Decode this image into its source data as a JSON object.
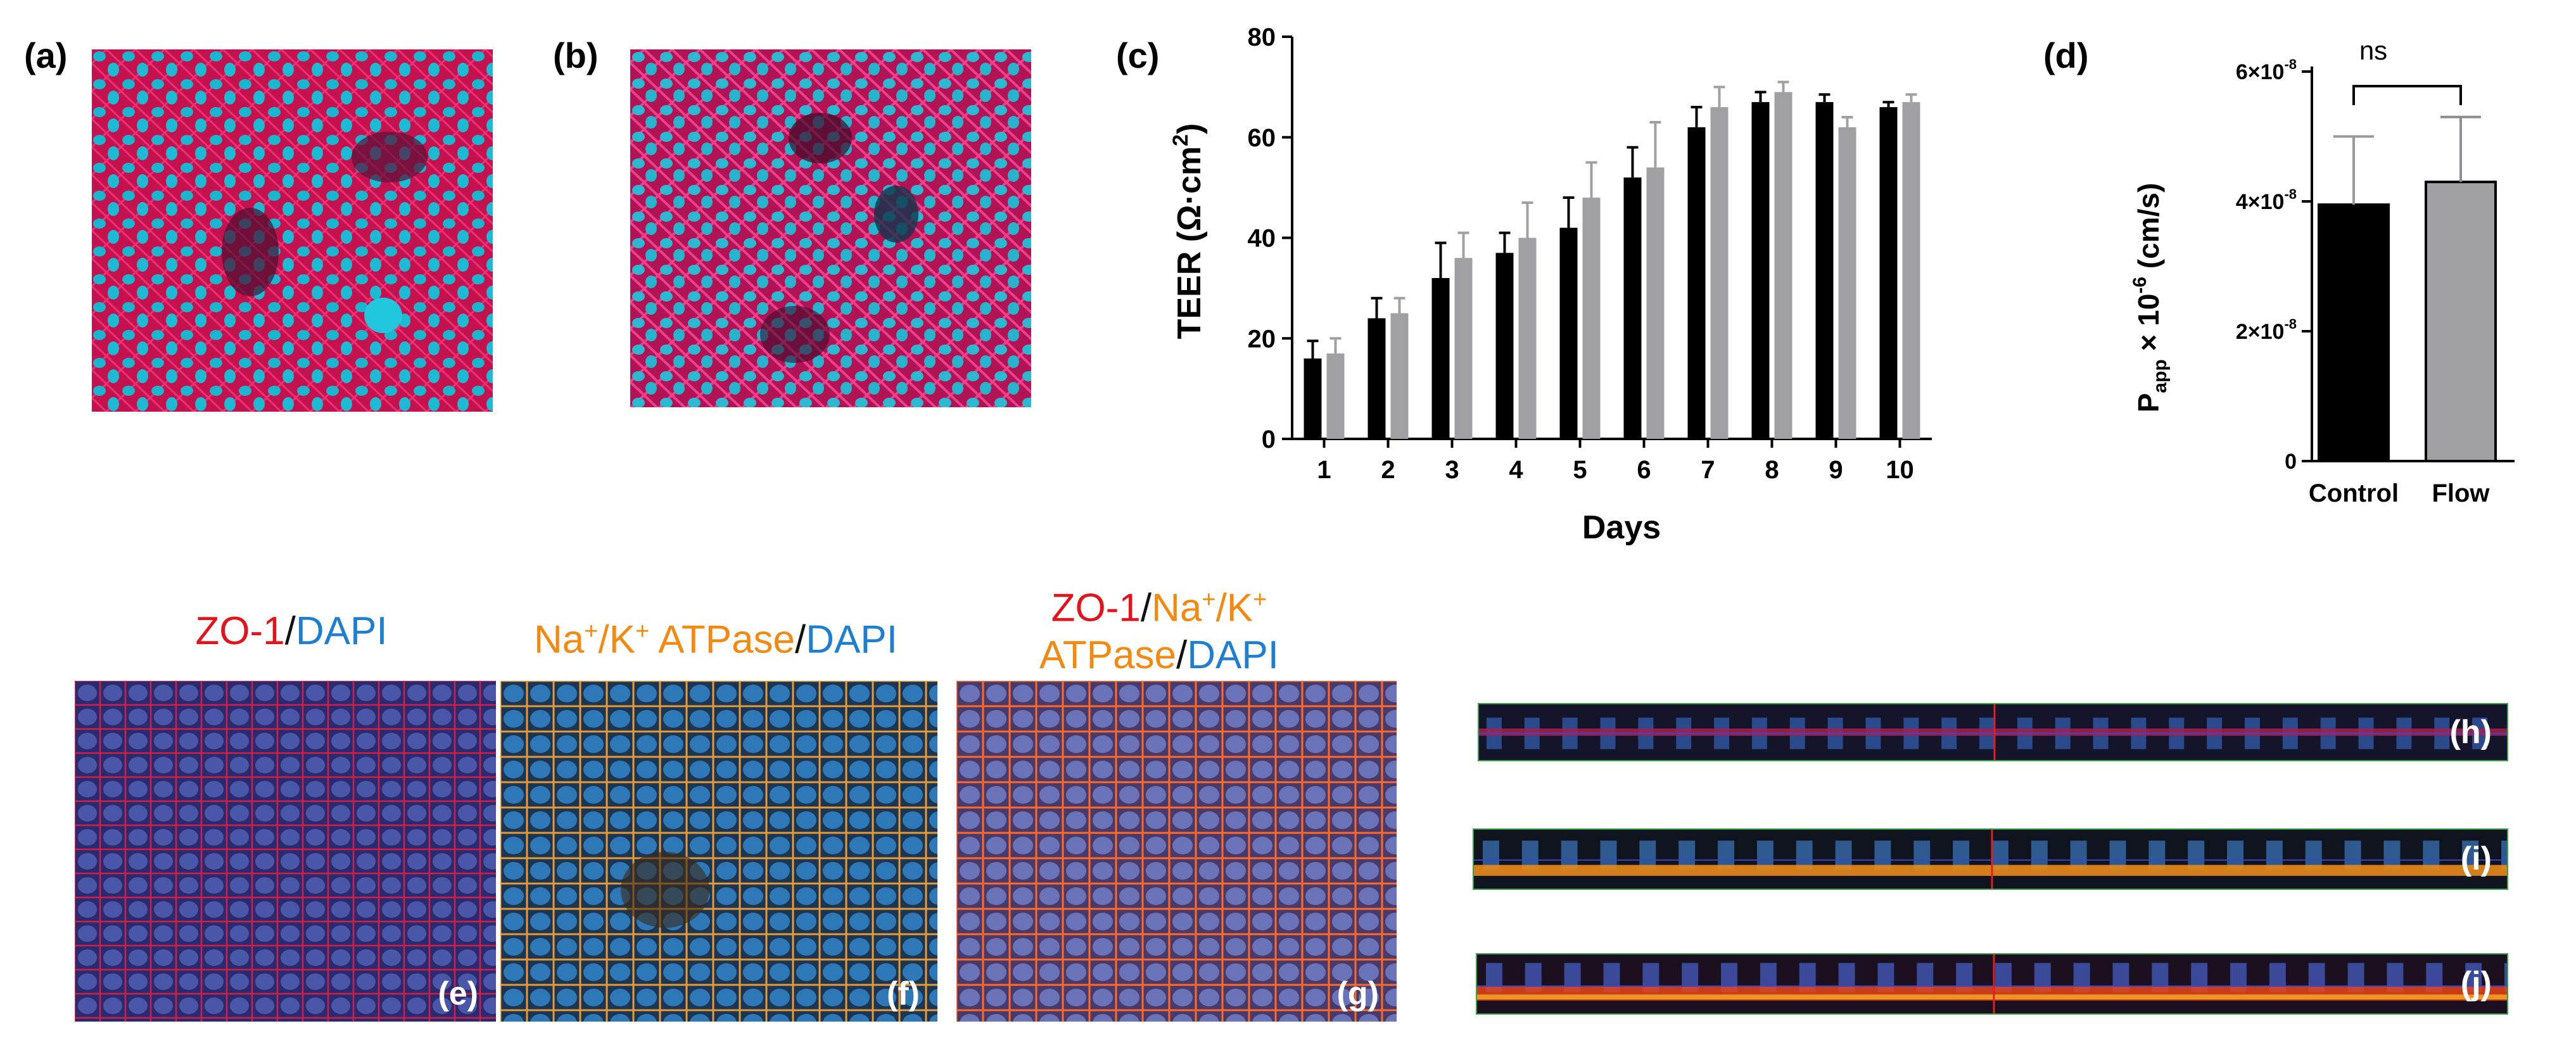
{
  "panels": {
    "a": "(a)",
    "b": "(b)",
    "c": "(c)",
    "d": "(d)",
    "e": "(e)",
    "f": "(f)",
    "g": "(g)",
    "h": "(h)",
    "i": "(i)",
    "j": "(j)"
  },
  "stain_labels": {
    "e": {
      "zo1": "ZO-1",
      "slash": "/",
      "dapi": "DAPI"
    },
    "f": {
      "na": "Na",
      "na_sup": "+",
      "k": "/K",
      "k_sup": "+",
      "atpase": " ATPase",
      "slash": "/",
      "dapi": "DAPI"
    },
    "g": {
      "zo1": "ZO-1",
      "slash1": "/",
      "na": "Na",
      "na_sup": "+",
      "k": "/K",
      "k_sup": "+",
      "atpase": "ATPase",
      "slash2": "/",
      "dapi": "DAPI"
    }
  },
  "colors": {
    "control": "#000000",
    "flow": "#a0a0a4",
    "zo1_red": "#e3131c",
    "atpase_orange": "#f28a12",
    "dapi_blue": "#1e7fd0",
    "nuclei_cyan": "#19b6cf",
    "membrane_magenta": "#e2145c"
  },
  "chart_data": [
    {
      "type": "bar",
      "panel": "(c)",
      "xlabel": "Days",
      "ylabel": "TEER (Ω·cm²)",
      "ylabel_parts": {
        "main": "TEER (Ω·cm",
        "sup": "2",
        "close": ")"
      },
      "categories": [
        "1",
        "2",
        "3",
        "4",
        "5",
        "6",
        "7",
        "8",
        "9",
        "10"
      ],
      "ylim": [
        0,
        80
      ],
      "yticks": [
        "0",
        "20",
        "40",
        "60",
        "80"
      ],
      "series": [
        {
          "values": [
            16,
            24,
            32,
            37,
            42,
            52,
            62,
            67,
            67,
            66
          ],
          "errors": [
            3.5,
            4,
            7,
            4,
            6,
            6,
            4,
            2,
            1.5,
            1
          ]
        },
        {
          "values": [
            17,
            25,
            36,
            40,
            48,
            54,
            66,
            69,
            62,
            67
          ],
          "errors": [
            3,
            3,
            5,
            7,
            7,
            9,
            4,
            2,
            2,
            1.5
          ]
        }
      ]
    },
    {
      "type": "bar",
      "panel": "(d)",
      "ylabel_parts": {
        "p": "P",
        "sub": "app",
        "times": " × 10",
        "sup": "-6",
        "unit": " (cm/s)"
      },
      "categories": [
        "Control",
        "Flow"
      ],
      "ylim": [
        0,
        6e-08
      ],
      "ytick_labels": [
        {
          "base": "0",
          "exp": ""
        },
        {
          "base": "2×10",
          "exp": "-8"
        },
        {
          "base": "4×10",
          "exp": "-8"
        },
        {
          "base": "6×10",
          "exp": "-8"
        }
      ],
      "values": [
        3.95e-08,
        4.3e-08
      ],
      "errors": [
        1.05e-08,
        1e-08
      ],
      "annotation": "ns"
    }
  ]
}
